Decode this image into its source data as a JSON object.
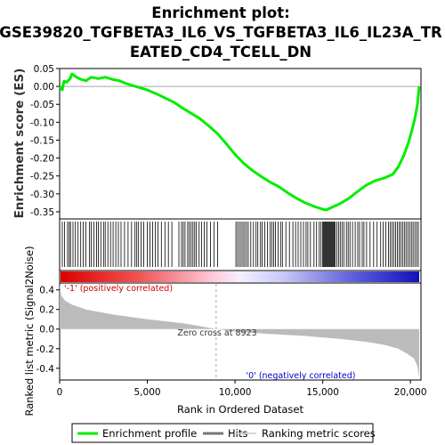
{
  "colors": {
    "enrichment": "#00ee00",
    "hits": "#000000",
    "metric_fill": "#bbbbbb",
    "positive_label": "#cc0000",
    "negative_label": "#0000cc",
    "zero_line": "#aaaaaa"
  },
  "chart_data": {
    "type": "line",
    "title_lines": [
      "Enrichment plot:",
      "GSE39820_TGFBETA3_IL6_VS_TGFBETA3_IL6_IL23A_TR",
      "EATED_CD4_TCELL_DN"
    ],
    "es_ylabel": "Enrichment score (ES)",
    "metric_ylabel": "Ranked list metric (Signal2Noise)",
    "xlabel": "Rank in Ordered Dataset",
    "xlim": [
      0,
      20600
    ],
    "x_ticks": [
      {
        "v": 0,
        "label": "0"
      },
      {
        "v": 5000,
        "label": "5,000"
      },
      {
        "v": 10000,
        "label": "10,000"
      },
      {
        "v": 15000,
        "label": "15,000"
      },
      {
        "v": 20000,
        "label": "20,000"
      }
    ],
    "es_ylim": [
      -0.37,
      0.05
    ],
    "es_ticks": [
      {
        "v": 0.05,
        "label": "0.05"
      },
      {
        "v": 0.0,
        "label": "0.00"
      },
      {
        "v": -0.05,
        "label": "-0.05"
      },
      {
        "v": -0.1,
        "label": "-0.10"
      },
      {
        "v": -0.15,
        "label": "-0.15"
      },
      {
        "v": -0.2,
        "label": "-0.20"
      },
      {
        "v": -0.25,
        "label": "-0.25"
      },
      {
        "v": -0.3,
        "label": "-0.30"
      },
      {
        "v": -0.35,
        "label": "-0.35"
      }
    ],
    "metric_ylim": [
      -0.52,
      0.47
    ],
    "metric_ticks": [
      {
        "v": 0.4,
        "label": "0.4"
      },
      {
        "v": 0.2,
        "label": "0.2"
      },
      {
        "v": 0.0,
        "label": "0.0"
      },
      {
        "v": -0.2,
        "label": "-0.2"
      },
      {
        "v": -0.4,
        "label": "-0.4"
      }
    ],
    "enrichment_profile": [
      [
        0,
        0.0
      ],
      [
        150,
        -0.01
      ],
      [
        250,
        0.015
      ],
      [
        400,
        0.012
      ],
      [
        600,
        0.022
      ],
      [
        700,
        0.035
      ],
      [
        900,
        0.028
      ],
      [
        1200,
        0.02
      ],
      [
        1500,
        0.016
      ],
      [
        1800,
        0.026
      ],
      [
        2200,
        0.022
      ],
      [
        2600,
        0.026
      ],
      [
        3000,
        0.02
      ],
      [
        3400,
        0.016
      ],
      [
        3800,
        0.008
      ],
      [
        4200,
        0.002
      ],
      [
        4600,
        -0.004
      ],
      [
        5000,
        -0.01
      ],
      [
        5500,
        -0.02
      ],
      [
        6000,
        -0.032
      ],
      [
        6500,
        -0.044
      ],
      [
        7000,
        -0.06
      ],
      [
        7500,
        -0.075
      ],
      [
        8000,
        -0.09
      ],
      [
        8500,
        -0.11
      ],
      [
        9000,
        -0.132
      ],
      [
        9500,
        -0.16
      ],
      [
        10000,
        -0.19
      ],
      [
        10500,
        -0.215
      ],
      [
        11000,
        -0.235
      ],
      [
        11500,
        -0.252
      ],
      [
        12000,
        -0.267
      ],
      [
        12500,
        -0.28
      ],
      [
        13000,
        -0.297
      ],
      [
        13500,
        -0.312
      ],
      [
        14000,
        -0.325
      ],
      [
        14500,
        -0.335
      ],
      [
        15000,
        -0.343
      ],
      [
        15200,
        -0.345
      ],
      [
        15500,
        -0.338
      ],
      [
        16000,
        -0.327
      ],
      [
        16500,
        -0.312
      ],
      [
        17000,
        -0.293
      ],
      [
        17500,
        -0.275
      ],
      [
        18000,
        -0.263
      ],
      [
        18500,
        -0.256
      ],
      [
        19000,
        -0.245
      ],
      [
        19300,
        -0.225
      ],
      [
        19600,
        -0.195
      ],
      [
        19900,
        -0.155
      ],
      [
        20100,
        -0.12
      ],
      [
        20250,
        -0.09
      ],
      [
        20400,
        -0.05
      ],
      [
        20500,
        0.0
      ]
    ],
    "metric_profile": [
      [
        0,
        0.46
      ],
      [
        100,
        0.34
      ],
      [
        300,
        0.29
      ],
      [
        700,
        0.25
      ],
      [
        1500,
        0.2
      ],
      [
        3000,
        0.15
      ],
      [
        5000,
        0.1
      ],
      [
        7000,
        0.06
      ],
      [
        8000,
        0.03
      ],
      [
        8923,
        0.0
      ],
      [
        10000,
        -0.025
      ],
      [
        12000,
        -0.05
      ],
      [
        14000,
        -0.07
      ],
      [
        16000,
        -0.1
      ],
      [
        17500,
        -0.13
      ],
      [
        18500,
        -0.16
      ],
      [
        19300,
        -0.2
      ],
      [
        19800,
        -0.25
      ],
      [
        20200,
        -0.3
      ],
      [
        20400,
        -0.38
      ],
      [
        20500,
        -0.5
      ]
    ],
    "zero_cross": 8923,
    "annotations": {
      "zero_cross": "Zero cross at 8923",
      "positive": "'-1' (positively correlated)",
      "negative": "'0' (negatively correlated)"
    },
    "legend": [
      {
        "label": "Enrichment profile",
        "color": "#00ee00"
      },
      {
        "label": "Hits",
        "color": "#777777"
      },
      {
        "label": "Ranking metric scores",
        "color": "#cccccc"
      }
    ],
    "hits": [
      150,
      280,
      450,
      550,
      620,
      760,
      900,
      1050,
      1200,
      1350,
      1500,
      1700,
      1800,
      1950,
      2100,
      2200,
      2350,
      2500,
      2600,
      2750,
      2900,
      3050,
      3200,
      3350,
      3500,
      3700,
      3900,
      4100,
      4300,
      4400,
      4500,
      4650,
      4800,
      5000,
      5150,
      5300,
      5450,
      5600,
      5800,
      6000,
      6200,
      6400,
      6800,
      6950,
      7050,
      7150,
      7300,
      7400,
      7500,
      7600,
      7700,
      7800,
      7950,
      8100,
      8250,
      8400,
      8600,
      8800,
      9000,
      10050,
      10150,
      10250,
      10350,
      10450,
      10550,
      10650,
      10750,
      10900,
      11050,
      11200,
      11300,
      11450,
      11550,
      11700,
      11850,
      12000,
      12100,
      12200,
      12300,
      12450,
      12600,
      12700,
      12900,
      13100,
      13300,
      13450,
      13600,
      13750,
      13900,
      14050,
      14150,
      14300,
      14500,
      14650,
      14800,
      14900,
      15000,
      15050,
      15100,
      15150,
      15200,
      15250,
      15300,
      15350,
      15400,
      15450,
      15500,
      15550,
      15600,
      15650,
      15700,
      15800,
      15900,
      16000,
      16100,
      16200,
      16350,
      16450,
      16550,
      16700,
      16850,
      17000,
      17100,
      17250,
      17350,
      17500,
      17700,
      17900,
      18100,
      18300,
      18450,
      18600,
      18750,
      18850,
      18950,
      19050,
      19150,
      19250,
      19350,
      19450,
      19550,
      19650,
      19750,
      19850,
      19950,
      20050,
      20150,
      20250,
      20350,
      20450
    ]
  }
}
